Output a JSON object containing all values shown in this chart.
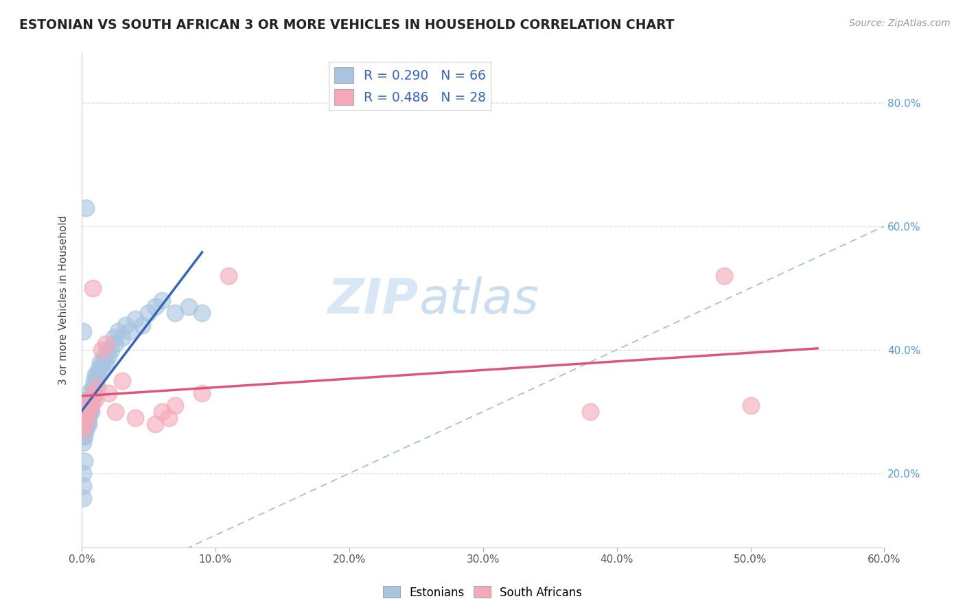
{
  "title": "ESTONIAN VS SOUTH AFRICAN 3 OR MORE VEHICLES IN HOUSEHOLD CORRELATION CHART",
  "source": "Source: ZipAtlas.com",
  "ylabel": "3 or more Vehicles in Household",
  "xlim": [
    0.0,
    0.6
  ],
  "ylim": [
    0.08,
    0.88
  ],
  "xticks": [
    0.0,
    0.1,
    0.2,
    0.3,
    0.4,
    0.5,
    0.6
  ],
  "yticks_right": [
    0.2,
    0.4,
    0.6,
    0.8
  ],
  "r_estonian": 0.29,
  "n_estonian": 66,
  "r_south_african": 0.486,
  "n_south_african": 28,
  "blue_color": "#a8c4e0",
  "pink_color": "#f4a8b8",
  "blue_line_color": "#3366bb",
  "pink_line_color": "#e05577",
  "diag_color": "#9bbcdd",
  "grid_color": "#dddddd",
  "title_color": "#222222",
  "source_color": "#999999",
  "right_tick_color": "#5599dd",
  "watermark_color": "#c8dff0",
  "estonian_x": [
    0.001,
    0.001,
    0.001,
    0.001,
    0.002,
    0.002,
    0.002,
    0.002,
    0.002,
    0.003,
    0.003,
    0.003,
    0.003,
    0.004,
    0.004,
    0.004,
    0.004,
    0.005,
    0.005,
    0.005,
    0.005,
    0.005,
    0.006,
    0.006,
    0.006,
    0.007,
    0.007,
    0.007,
    0.008,
    0.008,
    0.008,
    0.009,
    0.009,
    0.01,
    0.01,
    0.011,
    0.012,
    0.013,
    0.014,
    0.015,
    0.016,
    0.017,
    0.018,
    0.019,
    0.02,
    0.022,
    0.024,
    0.025,
    0.027,
    0.03,
    0.033,
    0.036,
    0.04,
    0.045,
    0.05,
    0.055,
    0.06,
    0.07,
    0.08,
    0.09,
    0.001,
    0.001,
    0.001,
    0.001,
    0.002,
    0.003
  ],
  "estonian_y": [
    0.27,
    0.25,
    0.26,
    0.28,
    0.28,
    0.29,
    0.27,
    0.26,
    0.3,
    0.29,
    0.28,
    0.3,
    0.27,
    0.31,
    0.29,
    0.28,
    0.32,
    0.31,
    0.3,
    0.29,
    0.33,
    0.28,
    0.32,
    0.3,
    0.31,
    0.32,
    0.31,
    0.3,
    0.33,
    0.32,
    0.34,
    0.33,
    0.35,
    0.34,
    0.36,
    0.35,
    0.36,
    0.37,
    0.38,
    0.37,
    0.38,
    0.39,
    0.38,
    0.4,
    0.39,
    0.4,
    0.42,
    0.41,
    0.43,
    0.42,
    0.44,
    0.43,
    0.45,
    0.44,
    0.46,
    0.47,
    0.48,
    0.46,
    0.47,
    0.46,
    0.43,
    0.2,
    0.18,
    0.16,
    0.22,
    0.63
  ],
  "south_african_x": [
    0.001,
    0.001,
    0.002,
    0.002,
    0.003,
    0.004,
    0.005,
    0.006,
    0.007,
    0.008,
    0.009,
    0.01,
    0.012,
    0.015,
    0.018,
    0.02,
    0.025,
    0.03,
    0.04,
    0.055,
    0.06,
    0.065,
    0.07,
    0.09,
    0.11,
    0.38,
    0.48,
    0.5
  ],
  "south_african_y": [
    0.28,
    0.27,
    0.3,
    0.28,
    0.29,
    0.31,
    0.3,
    0.32,
    0.31,
    0.5,
    0.33,
    0.32,
    0.34,
    0.4,
    0.41,
    0.33,
    0.3,
    0.35,
    0.29,
    0.28,
    0.3,
    0.29,
    0.31,
    0.33,
    0.52,
    0.3,
    0.52,
    0.31
  ]
}
